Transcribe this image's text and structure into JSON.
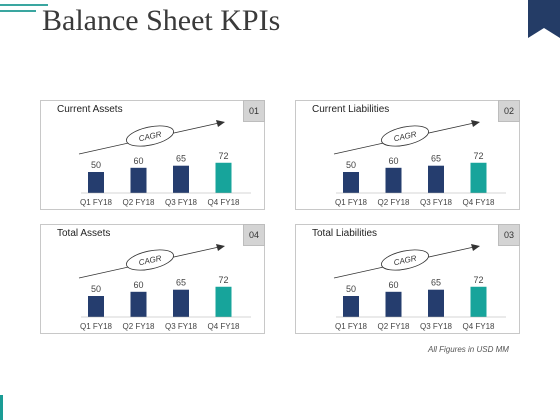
{
  "page": {
    "title": "Balance Sheet KPIs",
    "footnote": "All Figures in USD MM"
  },
  "colors": {
    "dark_bar": "#253d6e",
    "accent_bar": "#17a49b",
    "top_line": "#3aa6a0",
    "corner_tab": "#243c66"
  },
  "chart_data": [
    {
      "type": "bar",
      "title": "Current Assets",
      "badge": "01",
      "annotation": "CAGR",
      "categories": [
        "Q1 FY18",
        "Q2 FY18",
        "Q3 FY18",
        "Q4 FY18"
      ],
      "values": [
        50,
        60,
        65,
        72
      ],
      "highlight_index": 3
    },
    {
      "type": "bar",
      "title": "Current Liabilities",
      "badge": "02",
      "annotation": "CAGR",
      "categories": [
        "Q1 FY18",
        "Q2 FY18",
        "Q3 FY18",
        "Q4 FY18"
      ],
      "values": [
        50,
        60,
        65,
        72
      ],
      "highlight_index": 3
    },
    {
      "type": "bar",
      "title": "Total Assets",
      "badge": "04",
      "annotation": "CAGR",
      "categories": [
        "Q1 FY18",
        "Q2 FY18",
        "Q3 FY18",
        "Q4 FY18"
      ],
      "values": [
        50,
        60,
        65,
        72
      ],
      "highlight_index": 3
    },
    {
      "type": "bar",
      "title": "Total Liabilities",
      "badge": "03",
      "annotation": "CAGR",
      "categories": [
        "Q1 FY18",
        "Q2 FY18",
        "Q3 FY18",
        "Q4 FY18"
      ],
      "values": [
        50,
        60,
        65,
        72
      ],
      "highlight_index": 3
    }
  ]
}
